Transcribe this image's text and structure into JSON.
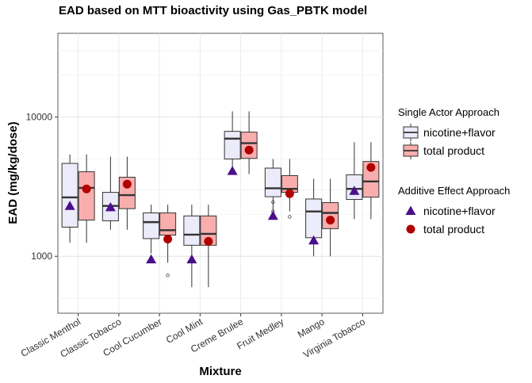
{
  "chart_data": {
    "type": "box",
    "title": "EAD based on MTT bioactivity using Gas_PBTK model",
    "xlabel": "Mixture",
    "ylabel": "EAD (mg/kg/dose)",
    "y_scale": "log10",
    "ylim": [
      390,
      40000
    ],
    "yticks": [
      1000,
      10000
    ],
    "ytick_labels": [
      "1000",
      "10000"
    ],
    "grid": true,
    "categories": [
      "Classic Menthol",
      "Classic Tobacco",
      "Cool Cucumber",
      "Cool Mint",
      "Creme Brulee",
      "Fruit Medley",
      "Mango",
      "Virginia Tobacco"
    ],
    "series": [
      {
        "name": "nicotine+flavor",
        "fill": "#ebebfa",
        "boxes": [
          {
            "whislo": 1250,
            "q1": 1620,
            "med": 2650,
            "q3": 4650,
            "whishi": 5400,
            "outliers": []
          },
          {
            "whislo": 1550,
            "q1": 1800,
            "med": 2300,
            "q3": 2880,
            "whishi": 5200,
            "outliers": []
          },
          {
            "whislo": 1050,
            "q1": 1340,
            "med": 1760,
            "q3": 2050,
            "whishi": 2350,
            "outliers": []
          },
          {
            "whislo": 600,
            "q1": 1200,
            "med": 1430,
            "q3": 1950,
            "whishi": 2350,
            "outliers": []
          },
          {
            "whislo": 3900,
            "q1": 5000,
            "med": 7000,
            "q3": 7900,
            "whishi": 11000,
            "outliers": []
          },
          {
            "whislo": 2100,
            "q1": 2680,
            "med": 3080,
            "q3": 4300,
            "whishi": 5000,
            "outliers": [
              2450,
              2100
            ]
          },
          {
            "whislo": 1000,
            "q1": 1360,
            "med": 2100,
            "q3": 2580,
            "whishi": 3600,
            "outliers": []
          },
          {
            "whislo": 1850,
            "q1": 2560,
            "med": 3050,
            "q3": 3850,
            "whishi": 6600,
            "outliers": []
          }
        ]
      },
      {
        "name": "total product",
        "fill": "#f9aeae",
        "boxes": [
          {
            "whislo": 1250,
            "q1": 1820,
            "med": 3100,
            "q3": 4050,
            "whishi": 5400,
            "outliers": []
          },
          {
            "whislo": 1550,
            "q1": 2200,
            "med": 2750,
            "q3": 3700,
            "whishi": 5200,
            "outliers": []
          },
          {
            "whislo": 900,
            "q1": 1420,
            "med": 1540,
            "q3": 2050,
            "whishi": 2350,
            "outliers": [
              730
            ]
          },
          {
            "whislo": 600,
            "q1": 1200,
            "med": 1450,
            "q3": 1950,
            "whishi": 2350,
            "outliers": []
          },
          {
            "whislo": 3900,
            "q1": 5050,
            "med": 6500,
            "q3": 7800,
            "whishi": 11000,
            "outliers": []
          },
          {
            "whislo": 2100,
            "q1": 2880,
            "med": 3050,
            "q3": 3800,
            "whishi": 5000,
            "outliers": [
              1920
            ]
          },
          {
            "whislo": 1000,
            "q1": 1580,
            "med": 2050,
            "q3": 2430,
            "whishi": 3600,
            "outliers": []
          },
          {
            "whislo": 1850,
            "q1": 2660,
            "med": 3450,
            "q3": 4800,
            "whishi": 6600,
            "outliers": []
          }
        ]
      }
    ],
    "additive_points": [
      {
        "name": "nicotine+flavor",
        "shape": "triangle",
        "color": "#4b0f8c",
        "values": [
          2300,
          2250,
          950,
          950,
          4100,
          1950,
          1300,
          2950
        ]
      },
      {
        "name": "total product",
        "shape": "circle",
        "color": "#b00000",
        "values": [
          3050,
          3300,
          1330,
          1280,
          5800,
          2820,
          1820,
          4350
        ]
      }
    ],
    "legend": {
      "position": "right",
      "box_title": "Single Actor Approach",
      "point_title": "Additive Effect Approach",
      "box_entries": [
        "nicotine+flavor",
        "total product"
      ],
      "point_entries": [
        "nicotine+flavor",
        "total product"
      ]
    }
  }
}
